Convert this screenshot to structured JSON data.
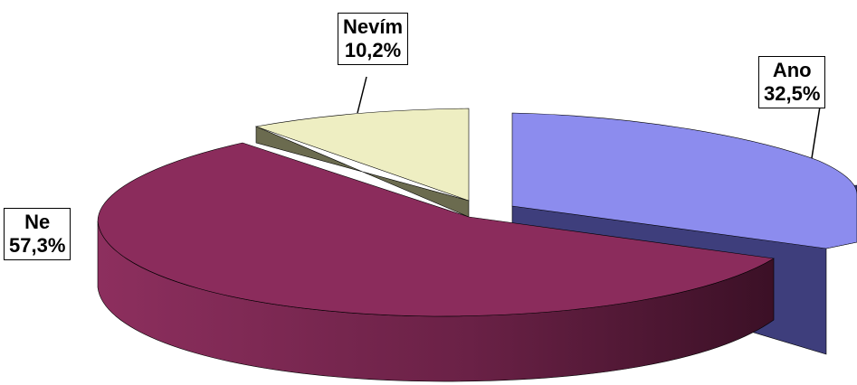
{
  "chart_data": {
    "type": "pie",
    "style": "3d-exploded",
    "title": "",
    "slices": [
      {
        "name": "Ano",
        "value": 32.5,
        "value_label": "32,5%",
        "color": "#8C8CEE",
        "side_color": "#3E3E7C"
      },
      {
        "name": "Ne",
        "value": 57.3,
        "value_label": "57,3%",
        "color": "#8B2C5C",
        "side_color": "#5E1E3E"
      },
      {
        "name": "Nevím",
        "value": 10.2,
        "value_label": "10,2%",
        "color": "#EEEEC2",
        "side_color": "#6B6B4F"
      }
    ]
  }
}
